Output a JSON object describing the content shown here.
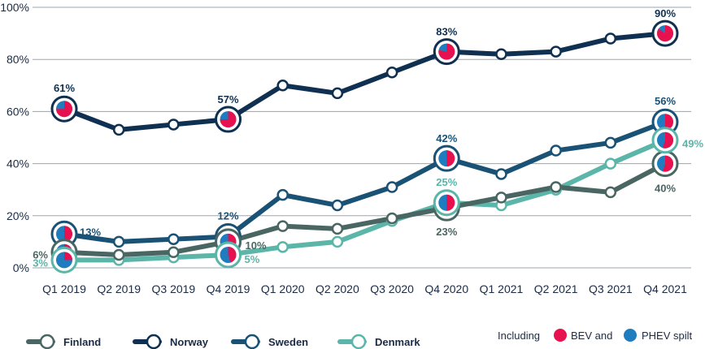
{
  "chart_data": {
    "type": "line",
    "categories": [
      "Q1 2019",
      "Q2 2019",
      "Q3 2019",
      "Q4 2019",
      "Q1 2020",
      "Q2 2020",
      "Q3 2020",
      "Q4 2020",
      "Q1 2021",
      "Q2 2021",
      "Q3 2021",
      "Q4 2021"
    ],
    "ylim": [
      0,
      100
    ],
    "y_ticks": [
      "0%",
      "20%",
      "40%",
      "60%",
      "80%",
      "100%"
    ],
    "grid": "horizontal",
    "legend_position": "bottom",
    "series": [
      {
        "name": "Finland",
        "color": "#4a6663",
        "values": [
          6,
          5,
          6,
          10,
          16,
          15,
          19,
          23,
          27,
          31,
          29,
          40
        ],
        "labels": {
          "0": "6%",
          "3": "10%",
          "7": "23%",
          "11": "40%"
        }
      },
      {
        "name": "Norway",
        "color": "#0f3050",
        "values": [
          61,
          53,
          55,
          57,
          70,
          67,
          75,
          83,
          82,
          83,
          88,
          90
        ],
        "labels": {
          "0": "61%",
          "3": "57%",
          "7": "83%",
          "11": "90%"
        }
      },
      {
        "name": "Sweden",
        "color": "#1a5276",
        "values": [
          13,
          10,
          11,
          12,
          28,
          24,
          31,
          42,
          36,
          45,
          48,
          56
        ],
        "labels": {
          "0": "13%",
          "3": "12%",
          "7": "42%",
          "11": "56%"
        }
      },
      {
        "name": "Denmark",
        "color": "#5bb5a8",
        "values": [
          3,
          3,
          4,
          5,
          8,
          10,
          18,
          25,
          24,
          30,
          40,
          49
        ],
        "labels": {
          "0": "3%",
          "3": "5%",
          "7": "25%",
          "11": "49%"
        }
      }
    ],
    "pie_markers": [
      {
        "series": 1,
        "index": 0,
        "bev_share": 0.75
      },
      {
        "series": 1,
        "index": 3,
        "bev_share": 0.75
      },
      {
        "series": 1,
        "index": 7,
        "bev_share": 0.78
      },
      {
        "series": 1,
        "index": 11,
        "bev_share": 0.85
      },
      {
        "series": 2,
        "index": 0,
        "bev_share": 0.5
      },
      {
        "series": 2,
        "index": 3,
        "bev_share": 0.5
      },
      {
        "series": 2,
        "index": 7,
        "bev_share": 0.5
      },
      {
        "series": 2,
        "index": 11,
        "bev_share": 0.5
      },
      {
        "series": 0,
        "index": 0,
        "bev_share": 0.3
      },
      {
        "series": 0,
        "index": 3,
        "bev_share": 0.3
      },
      {
        "series": 0,
        "index": 7,
        "bev_share": 0.45
      },
      {
        "series": 0,
        "index": 11,
        "bev_share": 0.55
      },
      {
        "series": 3,
        "index": 0,
        "bev_share": 0.25
      },
      {
        "series": 3,
        "index": 3,
        "bev_share": 0.45
      },
      {
        "series": 3,
        "index": 7,
        "bev_share": 0.5
      },
      {
        "series": 3,
        "index": 11,
        "bev_share": 0.55
      }
    ],
    "pie_colors": {
      "bev": "#e8114f",
      "phev": "#1e7cbf"
    }
  },
  "legend_note": {
    "prefix": "Including",
    "bev_label": "BEV and",
    "phev_label": "PHEV spilt"
  }
}
